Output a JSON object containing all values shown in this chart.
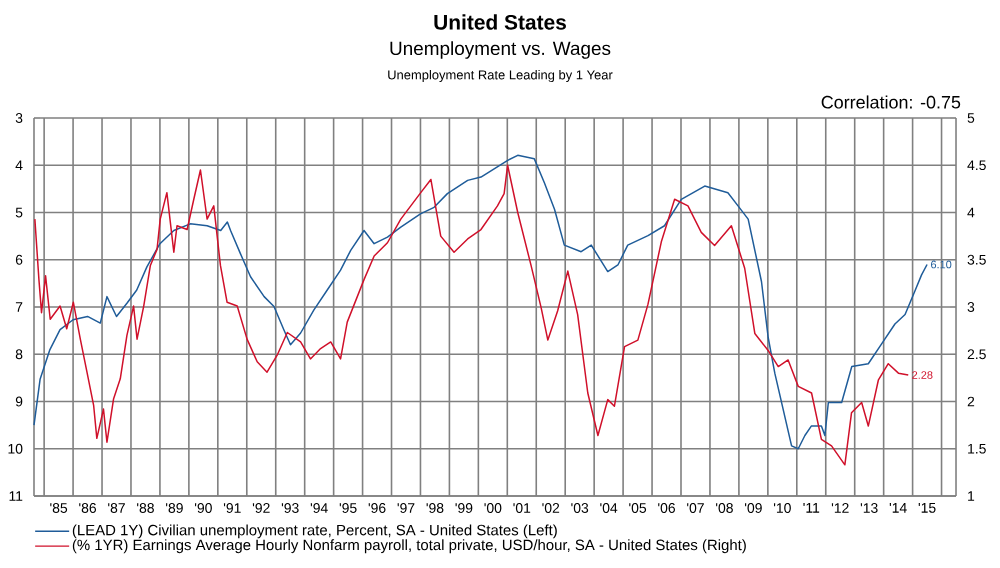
{
  "chart_data": {
    "type": "line",
    "title": "United States",
    "subtitle": "Unemployment vs. Wages",
    "annotations": [
      "Unemployment Rate Leading by 1 Year",
      "Correlation: -0.75"
    ],
    "xlim": [
      1984.15,
      2016
    ],
    "xticks": [
      {
        "value": 1985,
        "label": "'85"
      },
      {
        "value": 1986,
        "label": "'86"
      },
      {
        "value": 1987,
        "label": "'87"
      },
      {
        "value": 1988,
        "label": "'88"
      },
      {
        "value": 1989,
        "label": "'89"
      },
      {
        "value": 1990,
        "label": "'90"
      },
      {
        "value": 1991,
        "label": "'91"
      },
      {
        "value": 1992,
        "label": "'92"
      },
      {
        "value": 1993,
        "label": "'93"
      },
      {
        "value": 1994,
        "label": "'94"
      },
      {
        "value": 1995,
        "label": "'95"
      },
      {
        "value": 1996,
        "label": "'96"
      },
      {
        "value": 1997,
        "label": "'97"
      },
      {
        "value": 1998,
        "label": "'98"
      },
      {
        "value": 1999,
        "label": "'99"
      },
      {
        "value": 2000,
        "label": "'00"
      },
      {
        "value": 2001,
        "label": "'01"
      },
      {
        "value": 2002,
        "label": "'02"
      },
      {
        "value": 2003,
        "label": "'03"
      },
      {
        "value": 2004,
        "label": "'04"
      },
      {
        "value": 2005,
        "label": "'05"
      },
      {
        "value": 2006,
        "label": "'06"
      },
      {
        "value": 2007,
        "label": "'07"
      },
      {
        "value": 2008,
        "label": "'08"
      },
      {
        "value": 2009,
        "label": "'09"
      },
      {
        "value": 2010,
        "label": "'10"
      },
      {
        "value": 2011,
        "label": "'11"
      },
      {
        "value": 2012,
        "label": "'12"
      },
      {
        "value": 2013,
        "label": "'13"
      },
      {
        "value": 2014,
        "label": "'14"
      },
      {
        "value": 2015,
        "label": "'15"
      },
      {
        "value": 1984.5,
        "label": null
      },
      {
        "value": 1985.5,
        "label": null
      },
      {
        "value": 1986.5,
        "label": null
      },
      {
        "value": 1987.5,
        "label": null
      },
      {
        "value": 1988.5,
        "label": null
      },
      {
        "value": 1989.5,
        "label": null
      },
      {
        "value": 1990.5,
        "label": null
      },
      {
        "value": 1991.5,
        "label": null
      },
      {
        "value": 1992.5,
        "label": null
      },
      {
        "value": 1993.5,
        "label": null
      },
      {
        "value": 1994.5,
        "label": null
      },
      {
        "value": 1995.5,
        "label": null
      },
      {
        "value": 1996.5,
        "label": null
      },
      {
        "value": 1997.5,
        "label": null
      },
      {
        "value": 1998.5,
        "label": null
      },
      {
        "value": 1999.5,
        "label": null
      },
      {
        "value": 2000.5,
        "label": null
      },
      {
        "value": 2001.5,
        "label": null
      },
      {
        "value": 2002.5,
        "label": null
      },
      {
        "value": 2003.5,
        "label": null
      },
      {
        "value": 2004.5,
        "label": null
      },
      {
        "value": 2005.5,
        "label": null
      },
      {
        "value": 2006.5,
        "label": null
      },
      {
        "value": 2007.5,
        "label": null
      },
      {
        "value": 2008.5,
        "label": null
      },
      {
        "value": 2009.5,
        "label": null
      },
      {
        "value": 2010.5,
        "label": null
      },
      {
        "value": 2011.5,
        "label": null
      },
      {
        "value": 2012.5,
        "label": null
      },
      {
        "value": 2013.5,
        "label": null
      },
      {
        "value": 2014.5,
        "label": null
      },
      {
        "value": 2015.5,
        "label": null
      }
    ],
    "ylim": [
      11,
      3
    ],
    "yticks": [
      3,
      4,
      5,
      6,
      7,
      8,
      9,
      10,
      11
    ],
    "y2lim": [
      1,
      5
    ],
    "y2ticks": [
      1,
      1.5,
      2,
      2.5,
      3,
      3.5,
      4,
      4.5,
      5
    ],
    "grid": true,
    "legend": "bottom",
    "series": [
      {
        "name": "(LEAD 1Y) Civilian unemployment rate, Percent, SA - United States  (Left)",
        "color": "#1f5c99",
        "axis": "y",
        "x": [
          1984.15,
          1984.36,
          1984.7,
          1985.05,
          1985.5,
          1986.0,
          1986.44,
          1986.67,
          1987.0,
          1987.36,
          1987.7,
          1988.05,
          1988.5,
          1988.98,
          1989.55,
          1990.13,
          1990.6,
          1990.83,
          1990.94,
          1991.28,
          1991.63,
          1992.1,
          1992.44,
          1992.78,
          1993.01,
          1993.36,
          1993.82,
          1994.28,
          1994.74,
          1995.09,
          1995.55,
          1995.9,
          1996.36,
          1996.82,
          1997.5,
          1997.97,
          1998.43,
          1999.13,
          1999.59,
          2000.5,
          2000.86,
          2001.43,
          2001.78,
          2002.13,
          2002.47,
          2003.05,
          2003.4,
          2003.97,
          2004.32,
          2004.66,
          2005.36,
          2005.93,
          2006.51,
          2007.32,
          2008.12,
          2008.47,
          2008.82,
          2009.28,
          2009.51,
          2009.74,
          2010.32,
          2010.55,
          2010.78,
          2011.0,
          2011.35,
          2011.47,
          2011.59,
          2012.05,
          2012.4,
          2012.97,
          2013.43,
          2013.89,
          2014.24,
          2014.58,
          2014.81,
          2015.0
        ],
        "values": [
          9.5,
          8.53,
          7.9,
          7.48,
          7.27,
          7.2,
          7.34,
          6.78,
          7.2,
          6.92,
          6.64,
          6.15,
          5.66,
          5.38,
          5.24,
          5.28,
          5.38,
          5.2,
          5.38,
          5.87,
          6.36,
          6.78,
          6.99,
          7.48,
          7.8,
          7.55,
          7.06,
          6.64,
          6.22,
          5.8,
          5.38,
          5.66,
          5.52,
          5.31,
          5.03,
          4.89,
          4.6,
          4.32,
          4.25,
          3.9,
          3.79,
          3.86,
          4.37,
          4.93,
          5.69,
          5.83,
          5.69,
          6.25,
          6.11,
          5.69,
          5.49,
          5.28,
          4.72,
          4.44,
          4.58,
          4.86,
          5.14,
          6.46,
          7.64,
          8.4,
          9.94,
          10.0,
          9.72,
          9.52,
          9.52,
          9.72,
          9.02,
          9.02,
          8.26,
          8.2,
          7.78,
          7.36,
          7.16,
          6.66,
          6.32,
          6.1
        ],
        "value_labels": [
          null,
          null,
          null,
          null,
          null,
          null,
          null,
          null,
          null,
          null,
          null,
          null,
          null,
          null,
          null,
          null,
          null,
          null,
          null,
          null,
          null,
          null,
          null,
          null,
          null,
          null,
          null,
          null,
          null,
          null,
          null,
          null,
          null,
          null,
          null,
          null,
          null,
          null,
          null,
          null,
          null,
          null,
          null,
          null,
          null,
          null,
          null,
          null,
          null,
          null,
          null,
          null,
          null,
          null,
          null,
          null,
          null,
          null,
          null,
          null,
          null,
          null,
          null,
          null,
          null,
          null,
          null,
          null,
          null,
          null,
          null,
          null,
          null,
          null,
          null,
          "6.10"
        ]
      },
      {
        "name": "(% 1YR) Earnings Average Hourly Nonfarm payroll, total private, USD/hour, SA - United States  (Right)",
        "color": "#d0102a",
        "axis": "y2",
        "x": [
          1984.18,
          1984.32,
          1984.41,
          1984.55,
          1984.71,
          1985.05,
          1985.28,
          1985.51,
          1985.75,
          1985.98,
          1986.21,
          1986.32,
          1986.55,
          1986.67,
          1986.9,
          1987.13,
          1987.36,
          1987.59,
          1987.71,
          1987.94,
          1988.17,
          1988.4,
          1988.51,
          1988.74,
          1988.98,
          1989.09,
          1989.44,
          1989.67,
          1989.9,
          1990.13,
          1990.36,
          1990.59,
          1990.82,
          1991.17,
          1991.51,
          1991.86,
          1992.2,
          1992.55,
          1992.9,
          1993.36,
          1993.7,
          1994.05,
          1994.4,
          1994.74,
          1994.97,
          1995.55,
          1995.9,
          1996.36,
          1996.82,
          1997.51,
          1997.86,
          1998.2,
          1998.66,
          1999.13,
          1999.59,
          2000.16,
          2000.39,
          2000.51,
          2000.86,
          2001.32,
          2001.67,
          2001.9,
          2002.24,
          2002.59,
          2002.93,
          2003.28,
          2003.63,
          2003.97,
          2004.2,
          2004.55,
          2005.01,
          2005.36,
          2005.82,
          2006.28,
          2006.74,
          2007.2,
          2007.66,
          2008.24,
          2008.7,
          2009.05,
          2009.51,
          2009.86,
          2010.2,
          2010.55,
          2011.01,
          2011.35,
          2011.7,
          2012.16,
          2012.39,
          2012.74,
          2012.97,
          2013.32,
          2013.66,
          2014.01,
          2014.35
        ],
        "values": [
          3.93,
          3.29,
          2.94,
          3.33,
          2.87,
          3.01,
          2.77,
          3.05,
          2.66,
          2.31,
          1.96,
          1.61,
          1.92,
          1.57,
          2.03,
          2.24,
          2.7,
          3.01,
          2.66,
          3.01,
          3.44,
          3.61,
          3.93,
          4.21,
          3.58,
          3.86,
          3.82,
          4.14,
          4.45,
          3.93,
          4.07,
          3.44,
          3.05,
          3.01,
          2.66,
          2.42,
          2.31,
          2.49,
          2.73,
          2.63,
          2.45,
          2.56,
          2.63,
          2.45,
          2.84,
          3.29,
          3.54,
          3.68,
          3.93,
          4.21,
          4.35,
          3.75,
          3.58,
          3.72,
          3.82,
          4.07,
          4.2,
          4.5,
          4.0,
          3.44,
          2.99,
          2.65,
          2.96,
          3.38,
          2.92,
          2.09,
          1.64,
          2.02,
          1.95,
          2.58,
          2.65,
          3.03,
          3.69,
          4.14,
          4.07,
          3.79,
          3.65,
          3.86,
          3.41,
          2.72,
          2.54,
          2.37,
          2.44,
          2.16,
          2.09,
          1.6,
          1.53,
          1.33,
          1.88,
          1.99,
          1.74,
          2.23,
          2.4,
          2.3,
          2.28
        ],
        "value_labels": [
          null,
          null,
          null,
          null,
          null,
          null,
          null,
          null,
          null,
          null,
          null,
          null,
          null,
          null,
          null,
          null,
          null,
          null,
          null,
          null,
          null,
          null,
          null,
          null,
          null,
          null,
          null,
          null,
          null,
          null,
          null,
          null,
          null,
          null,
          null,
          null,
          null,
          null,
          null,
          null,
          null,
          null,
          null,
          null,
          null,
          null,
          null,
          null,
          null,
          null,
          null,
          null,
          null,
          null,
          null,
          null,
          null,
          null,
          null,
          null,
          null,
          null,
          null,
          null,
          null,
          null,
          null,
          null,
          null,
          null,
          null,
          null,
          null,
          null,
          null,
          null,
          null,
          null,
          null,
          null,
          null,
          null,
          null,
          null,
          null,
          null,
          null,
          null,
          null,
          null,
          null,
          null,
          null,
          null,
          "2.28"
        ]
      }
    ]
  }
}
